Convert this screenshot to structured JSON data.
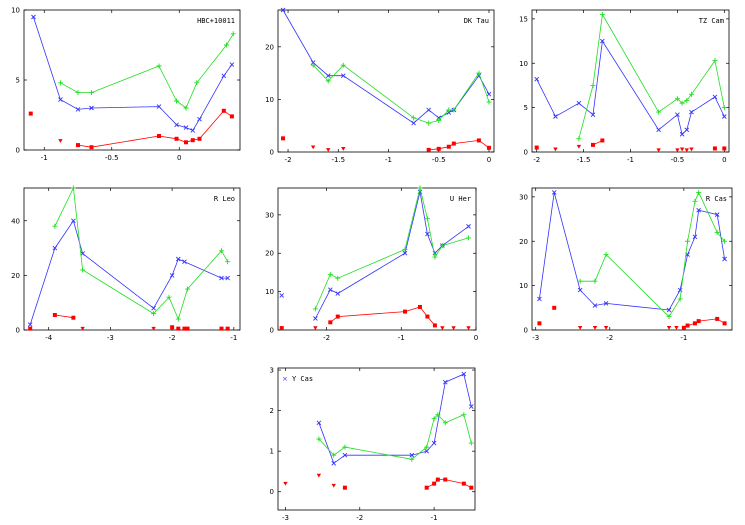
{
  "chart_data": [
    {
      "type": "line",
      "title": "HBC+10011",
      "xlim": [
        -1.15,
        0.45
      ],
      "ylim": [
        0,
        10
      ],
      "xticks": [
        -1,
        -0.5,
        0
      ],
      "xticklabels": [
        "-1",
        "-0.5",
        "0"
      ],
      "yticks": [
        0,
        5,
        10
      ],
      "yticklabels": [
        "0",
        "5",
        "10"
      ],
      "series": [
        {
          "name": "blue",
          "marker": "x",
          "connected": true,
          "x": [
            -1.08,
            -0.88,
            -0.75,
            -0.65,
            -0.15,
            -0.02,
            0.05,
            0.1,
            0.15,
            0.33,
            0.39
          ],
          "y": [
            9.5,
            3.6,
            2.9,
            3.0,
            3.1,
            1.8,
            1.6,
            1.4,
            2.2,
            5.3,
            6.1
          ]
        },
        {
          "name": "green",
          "marker": "+",
          "connected": true,
          "x": [
            -0.88,
            -0.75,
            -0.65,
            -0.15,
            -0.02,
            0.05,
            0.13,
            0.35,
            0.4
          ],
          "y": [
            4.8,
            4.1,
            4.1,
            6.0,
            3.5,
            3.0,
            4.8,
            7.5,
            8.3
          ]
        },
        {
          "name": "red",
          "marker": "square",
          "connected": true,
          "x": [
            -0.75,
            -0.65,
            -0.15,
            -0.02,
            0.05,
            0.1,
            0.15,
            0.33,
            0.39
          ],
          "y": [
            0.35,
            0.2,
            1.0,
            0.8,
            0.55,
            0.7,
            0.8,
            2.8,
            2.4
          ]
        },
        {
          "name": "red-isolated",
          "marker": "square",
          "connected": false,
          "x": [
            -1.1
          ],
          "y": [
            2.6
          ]
        },
        {
          "name": "red-upper-limit",
          "marker": "triangle-down",
          "connected": false,
          "x": [
            -0.88
          ],
          "y": [
            0.65
          ]
        }
      ]
    },
    {
      "type": "line",
      "title": "DK Tau",
      "xlim": [
        -2.1,
        0.05
      ],
      "ylim": [
        0,
        27
      ],
      "xticks": [
        -2,
        -1.5,
        -1,
        -0.5,
        0
      ],
      "xticklabels": [
        "-2",
        "-1.5",
        "-1",
        "-0.5",
        "0"
      ],
      "yticks": [
        0,
        10,
        20
      ],
      "yticklabels": [
        "0",
        "10",
        "20"
      ],
      "series": [
        {
          "name": "blue",
          "marker": "x",
          "connected": true,
          "x": [
            -2.05,
            -1.75,
            -1.6,
            -1.45,
            -0.75,
            -0.6,
            -0.5,
            -0.4,
            -0.35,
            -0.1,
            0.0
          ],
          "y": [
            27,
            17,
            14.5,
            14.5,
            5.5,
            8,
            6.5,
            7.5,
            8,
            14.5,
            11
          ]
        },
        {
          "name": "green",
          "marker": "+",
          "connected": true,
          "x": [
            -1.75,
            -1.6,
            -1.45,
            -0.75,
            -0.6,
            -0.5,
            -0.4,
            -0.35,
            -0.1,
            0.0
          ],
          "y": [
            16.5,
            13.5,
            16.5,
            6.5,
            5.5,
            6.0,
            8.0,
            8.0,
            15.0,
            9.5
          ]
        },
        {
          "name": "red",
          "marker": "square",
          "connected": true,
          "x": [
            -0.6,
            -0.5,
            -0.4,
            -0.35,
            -0.1,
            0.0
          ],
          "y": [
            0.4,
            0.6,
            1.0,
            1.6,
            2.2,
            0.8
          ]
        },
        {
          "name": "red-isolated",
          "marker": "square",
          "connected": false,
          "x": [
            -2.05
          ],
          "y": [
            2.6
          ]
        },
        {
          "name": "red-upper-limit",
          "marker": "triangle-down",
          "connected": false,
          "x": [
            -1.75,
            -1.6,
            -1.45
          ],
          "y": [
            0.9,
            0.4,
            0.6
          ]
        }
      ]
    },
    {
      "type": "line",
      "title": "TZ Cam",
      "xlim": [
        -2.05,
        0.05
      ],
      "ylim": [
        0,
        16
      ],
      "xticks": [
        -2,
        -1.5,
        -1,
        -0.5,
        0
      ],
      "xticklabels": [
        "-2",
        "-1.5",
        "-1",
        "-0.5",
        "0"
      ],
      "yticks": [
        0,
        5,
        10,
        15
      ],
      "yticklabels": [
        "0",
        "5",
        "10",
        "15"
      ],
      "series": [
        {
          "name": "blue",
          "marker": "x",
          "connected": true,
          "x": [
            -2.0,
            -1.8,
            -1.55,
            -1.4,
            -1.3,
            -0.7,
            -0.5,
            -0.45,
            -0.4,
            -0.35,
            -0.1,
            0.0
          ],
          "y": [
            8.2,
            4.0,
            5.5,
            4.2,
            12.5,
            2.5,
            4.2,
            2.0,
            2.5,
            4.5,
            6.2,
            4.0
          ]
        },
        {
          "name": "green",
          "marker": "+",
          "connected": true,
          "x": [
            -1.55,
            -1.4,
            -1.3,
            -0.7,
            -0.5,
            -0.45,
            -0.4,
            -0.35,
            -0.1,
            0.0
          ],
          "y": [
            1.5,
            7.5,
            15.5,
            4.5,
            6.0,
            5.5,
            5.8,
            6.5,
            10.3,
            5.0
          ]
        },
        {
          "name": "red",
          "marker": "square",
          "connected": true,
          "x": [
            -1.4,
            -1.3
          ],
          "y": [
            0.8,
            1.3
          ]
        },
        {
          "name": "red-isolated",
          "marker": "square",
          "connected": false,
          "x": [
            -2.0,
            -0.1,
            0.0
          ],
          "y": [
            0.5,
            0.4,
            0.4
          ]
        },
        {
          "name": "red-upper-limit",
          "marker": "triangle-down",
          "connected": false,
          "x": [
            -1.8,
            -1.55,
            -0.7,
            -0.5,
            -0.45,
            -0.4,
            -0.35
          ],
          "y": [
            0.3,
            0.6,
            0.2,
            0.2,
            0.3,
            0.2,
            0.3
          ]
        }
      ]
    },
    {
      "type": "line",
      "title": "R Leo",
      "xlim": [
        -4.4,
        -0.9
      ],
      "ylim": [
        0,
        52
      ],
      "xticks": [
        -4,
        -3,
        -2,
        -1
      ],
      "xticklabels": [
        "-4",
        "-3",
        "-2",
        "-1"
      ],
      "yticks": [
        0,
        20,
        40
      ],
      "yticklabels": [
        "0",
        "20",
        "40"
      ],
      "series": [
        {
          "name": "blue",
          "marker": "x",
          "connected": true,
          "x": [
            -4.3,
            -3.9,
            -3.6,
            -3.45,
            -2.3,
            -2.0,
            -1.9,
            -1.8,
            -1.2,
            -1.1
          ],
          "y": [
            2,
            30,
            40,
            28,
            8,
            20,
            26,
            25,
            19,
            19
          ]
        },
        {
          "name": "green",
          "marker": "+",
          "connected": true,
          "x": [
            -3.9,
            -3.6,
            -3.45,
            -2.3,
            -2.05,
            -1.9,
            -1.75,
            -1.2,
            -1.1
          ],
          "y": [
            38,
            52,
            22,
            6,
            12,
            4,
            15,
            29,
            25
          ]
        },
        {
          "name": "red",
          "marker": "square",
          "connected": true,
          "x": [
            -3.9,
            -3.6
          ],
          "y": [
            5.5,
            4.5
          ]
        },
        {
          "name": "red-isolated",
          "marker": "square",
          "connected": false,
          "x": [
            -4.3,
            -2.0,
            -1.9,
            -1.8,
            -1.75,
            -1.2,
            -1.1
          ],
          "y": [
            0.5,
            1,
            0.5,
            0.5,
            0.5,
            0.5,
            0.5
          ]
        },
        {
          "name": "red-upper-limit",
          "marker": "triangle-down",
          "connected": false,
          "x": [
            -3.45,
            -2.3
          ],
          "y": [
            0.5,
            0.5
          ]
        }
      ]
    },
    {
      "type": "line",
      "title": "U Her",
      "xlim": [
        -2.65,
        0.0
      ],
      "ylim": [
        0,
        37
      ],
      "xticks": [
        -2,
        -1,
        0
      ],
      "xticklabels": [
        "-2",
        "-1",
        "0"
      ],
      "yticks": [
        0,
        10,
        20,
        30
      ],
      "yticklabels": [
        "0",
        "10",
        "20",
        "30"
      ],
      "series": [
        {
          "name": "blue",
          "marker": "x",
          "connected": true,
          "x": [
            -2.15,
            -1.95,
            -1.85,
            -0.95,
            -0.75,
            -0.65,
            -0.55,
            -0.45,
            -0.1
          ],
          "y": [
            3,
            10.5,
            9.5,
            20,
            36,
            25,
            20,
            22,
            27
          ]
        },
        {
          "name": "green",
          "marker": "+",
          "connected": true,
          "x": [
            -2.15,
            -1.95,
            -1.85,
            -0.95,
            -0.75,
            -0.65,
            -0.55,
            -0.45,
            -0.1
          ],
          "y": [
            5.5,
            14.5,
            13.5,
            21,
            37,
            29,
            19,
            22,
            24
          ]
        },
        {
          "name": "red",
          "marker": "square",
          "connected": true,
          "x": [
            -1.95,
            -1.85,
            -0.95,
            -0.75,
            -0.65,
            -0.55
          ],
          "y": [
            2,
            3.5,
            4.8,
            6,
            3.5,
            1.2
          ]
        },
        {
          "name": "blue-isolated",
          "marker": "x",
          "connected": false,
          "x": [
            -2.6
          ],
          "y": [
            9
          ]
        },
        {
          "name": "red-isolated",
          "marker": "square",
          "connected": false,
          "x": [
            -2.6
          ],
          "y": [
            0.5
          ]
        },
        {
          "name": "red-upper-limit",
          "marker": "triangle-down",
          "connected": false,
          "x": [
            -2.15,
            -0.45,
            -0.3,
            -0.1
          ],
          "y": [
            0.5,
            0.5,
            0.5,
            0.5
          ]
        }
      ]
    },
    {
      "type": "line",
      "title": "R Cas",
      "xlim": [
        -3.05,
        -0.35
      ],
      "ylim": [
        0,
        32
      ],
      "xticks": [
        -3,
        -2,
        -1
      ],
      "xticklabels": [
        "-3",
        "-2",
        "-1"
      ],
      "yticks": [
        0,
        10,
        20,
        30
      ],
      "yticklabels": [
        "0",
        "10",
        "20",
        "30"
      ],
      "series": [
        {
          "name": "blue",
          "marker": "x",
          "connected": true,
          "x": [
            -2.95,
            -2.75,
            -2.4,
            -2.2,
            -2.05,
            -1.2,
            -1.05,
            -0.95,
            -0.85,
            -0.8,
            -0.55,
            -0.45
          ],
          "y": [
            7,
            31,
            9,
            5.5,
            6,
            4.5,
            9,
            17,
            21,
            27,
            26,
            16
          ]
        },
        {
          "name": "green",
          "marker": "+",
          "connected": true,
          "x": [
            -2.4,
            -2.2,
            -2.05,
            -1.2,
            -1.05,
            -0.95,
            -0.85,
            -0.8,
            -0.55,
            -0.45
          ],
          "y": [
            11,
            11,
            17,
            3,
            7,
            20,
            29,
            31,
            22,
            20
          ]
        },
        {
          "name": "red",
          "marker": "square",
          "connected": true,
          "x": [
            -1.0,
            -0.95,
            -0.85,
            -0.8,
            -0.55,
            -0.45
          ],
          "y": [
            0.5,
            1.0,
            1.5,
            2.0,
            2.5,
            1.5
          ]
        },
        {
          "name": "red-isolated",
          "marker": "square",
          "connected": false,
          "x": [
            -2.95,
            -2.75
          ],
          "y": [
            1.5,
            5
          ]
        },
        {
          "name": "red-upper-limit",
          "marker": "triangle-down",
          "connected": false,
          "x": [
            -2.4,
            -2.2,
            -2.05,
            -1.2,
            -1.1
          ],
          "y": [
            0.5,
            0.5,
            0.5,
            0.5,
            0.5
          ]
        }
      ]
    },
    {
      "type": "line",
      "title": "Y Cas",
      "xlim": [
        -3.1,
        -0.45
      ],
      "ylim": [
        -0.45,
        3.05
      ],
      "xticks": [
        -3,
        -2,
        -1
      ],
      "xticklabels": [
        "-3",
        "-2",
        "-1"
      ],
      "yticks": [
        0,
        1,
        2,
        3
      ],
      "yticklabels": [
        "0",
        "1",
        "2",
        "3"
      ],
      "series": [
        {
          "name": "blue",
          "marker": "x",
          "connected": true,
          "x": [
            -2.55,
            -2.35,
            -2.2,
            -1.3,
            -1.1,
            -1.0,
            -0.85,
            -0.6,
            -0.5
          ],
          "y": [
            1.7,
            0.7,
            0.9,
            0.9,
            1.0,
            1.2,
            2.7,
            2.9,
            2.1
          ]
        },
        {
          "name": "green",
          "marker": "+",
          "connected": true,
          "x": [
            -2.55,
            -2.35,
            -2.2,
            -1.3,
            -1.1,
            -1.0,
            -0.95,
            -0.85,
            -0.6,
            -0.5
          ],
          "y": [
            1.3,
            0.9,
            1.1,
            0.8,
            1.1,
            1.8,
            1.9,
            1.7,
            1.9,
            1.2
          ]
        },
        {
          "name": "red",
          "marker": "square",
          "connected": true,
          "x": [
            -1.1,
            -1.0,
            -0.95,
            -0.85,
            -0.6,
            -0.5
          ],
          "y": [
            0.1,
            0.2,
            0.3,
            0.3,
            0.2,
            0.1
          ]
        },
        {
          "name": "red-isolated",
          "marker": "square",
          "connected": false,
          "x": [
            -2.2
          ],
          "y": [
            0.1
          ]
        },
        {
          "name": "red-upper-limit",
          "marker": "triangle-down",
          "connected": false,
          "x": [
            -3.0,
            -2.55,
            -2.35
          ],
          "y": [
            0.2,
            0.4,
            0.15
          ]
        }
      ]
    }
  ],
  "legend_symbol": "×",
  "colors": {
    "blue": "#3333ff",
    "green": "#22dd22",
    "red": "#ff0000",
    "axis": "#000000"
  }
}
